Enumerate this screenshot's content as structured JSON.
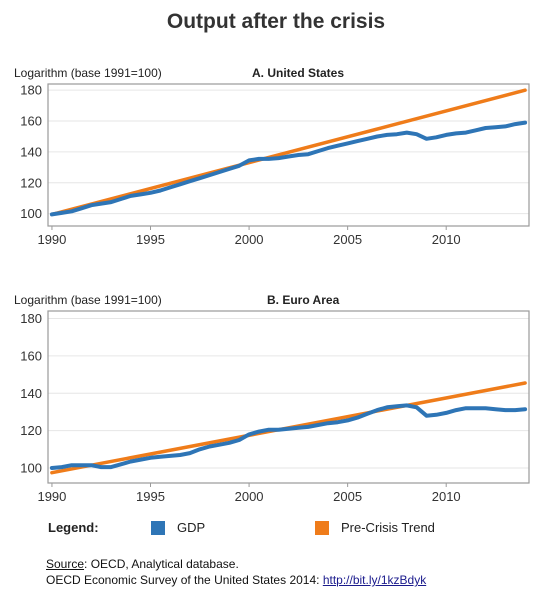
{
  "title": "Output after the crisis",
  "colors": {
    "gdp": "#2e75b6",
    "trend": "#ef7c1a",
    "frame": "#9a9a9a",
    "grid": "#e6e6e6"
  },
  "legend": {
    "title": "Legend:",
    "gdp_label": "GDP",
    "trend_label": "Pre-Crisis Trend"
  },
  "source": {
    "prefix": "Source",
    "text": ": OECD, Analytical database.",
    "line2": "OECD Economic Survey of the United States 2014: ",
    "link": "http://bit.ly/1kzBdyk"
  },
  "chart_data": [
    {
      "type": "line",
      "title": "A. United States",
      "ylabel": "Logarithm (base 1991=100)",
      "xlim": [
        1989.8,
        2014.2
      ],
      "ylim": [
        92,
        184
      ],
      "xticks": [
        1990,
        1995,
        2000,
        2005,
        2010
      ],
      "yticks": [
        100,
        120,
        140,
        160,
        180
      ],
      "grid": true,
      "series": [
        {
          "name": "GDP",
          "x": [
            1990,
            1990.5,
            1991,
            1991.5,
            1992,
            1992.5,
            1993,
            1993.5,
            1994,
            1994.5,
            1995,
            1995.5,
            1996,
            1996.5,
            1997,
            1997.5,
            1998,
            1998.5,
            1999,
            1999.5,
            2000,
            2000.5,
            2001,
            2001.5,
            2002,
            2002.5,
            2003,
            2003.5,
            2004,
            2004.5,
            2005,
            2005.5,
            2006,
            2006.5,
            2007,
            2007.5,
            2008,
            2008.5,
            2009,
            2009.5,
            2010,
            2010.5,
            2011,
            2011.5,
            2012,
            2012.5,
            2013,
            2013.5,
            2014
          ],
          "values": [
            99.5,
            100.5,
            101.5,
            103.5,
            105.5,
            106.5,
            107.5,
            109.5,
            111.5,
            112.5,
            113.5,
            115,
            117,
            119,
            121,
            123,
            125,
            127,
            129,
            131,
            134.5,
            135.5,
            135.5,
            136,
            137,
            138,
            138.5,
            140.5,
            142.5,
            144,
            145.5,
            147,
            148.5,
            150,
            151,
            151.5,
            152.5,
            151.5,
            148.5,
            149.5,
            151,
            152,
            152.5,
            154,
            155.5,
            156,
            156.5,
            158,
            159
          ]
        },
        {
          "name": "Pre-Crisis Trend",
          "x": [
            1990,
            2014
          ],
          "values": [
            99.5,
            180
          ]
        }
      ]
    },
    {
      "type": "line",
      "title": "B. Euro Area",
      "ylabel": "Logarithm (base 1991=100)",
      "xlim": [
        1989.8,
        2014.2
      ],
      "ylim": [
        92,
        184
      ],
      "xticks": [
        1990,
        1995,
        2000,
        2005,
        2010
      ],
      "yticks": [
        100,
        120,
        140,
        160,
        180
      ],
      "grid": true,
      "series": [
        {
          "name": "GDP",
          "x": [
            1990,
            1990.5,
            1991,
            1991.5,
            1992,
            1992.5,
            1993,
            1993.5,
            1994,
            1994.5,
            1995,
            1995.5,
            1996,
            1996.5,
            1997,
            1997.5,
            1998,
            1998.5,
            1999,
            1999.5,
            2000,
            2000.5,
            2001,
            2001.5,
            2002,
            2002.5,
            2003,
            2003.5,
            2004,
            2004.5,
            2005,
            2005.5,
            2006,
            2006.5,
            2007,
            2007.5,
            2008,
            2008.5,
            2009,
            2009.5,
            2010,
            2010.5,
            2011,
            2011.5,
            2012,
            2012.5,
            2013,
            2013.5,
            2014
          ],
          "values": [
            100,
            100.5,
            101.5,
            101.5,
            101.5,
            100.5,
            100.5,
            102,
            103.5,
            104.5,
            105.5,
            106,
            106.5,
            107,
            108,
            110,
            111.5,
            112.5,
            113.5,
            115,
            118,
            119.5,
            120.5,
            120.5,
            121,
            121.5,
            122,
            123,
            124,
            124.5,
            125.5,
            127,
            129,
            131,
            132.5,
            133,
            133.5,
            132.5,
            128,
            128.5,
            129.5,
            131,
            132,
            132,
            132,
            131.5,
            131,
            131,
            131.5
          ]
        },
        {
          "name": "Pre-Crisis Trend",
          "x": [
            1990,
            2014
          ],
          "values": [
            97.5,
            145.5
          ]
        }
      ]
    }
  ]
}
